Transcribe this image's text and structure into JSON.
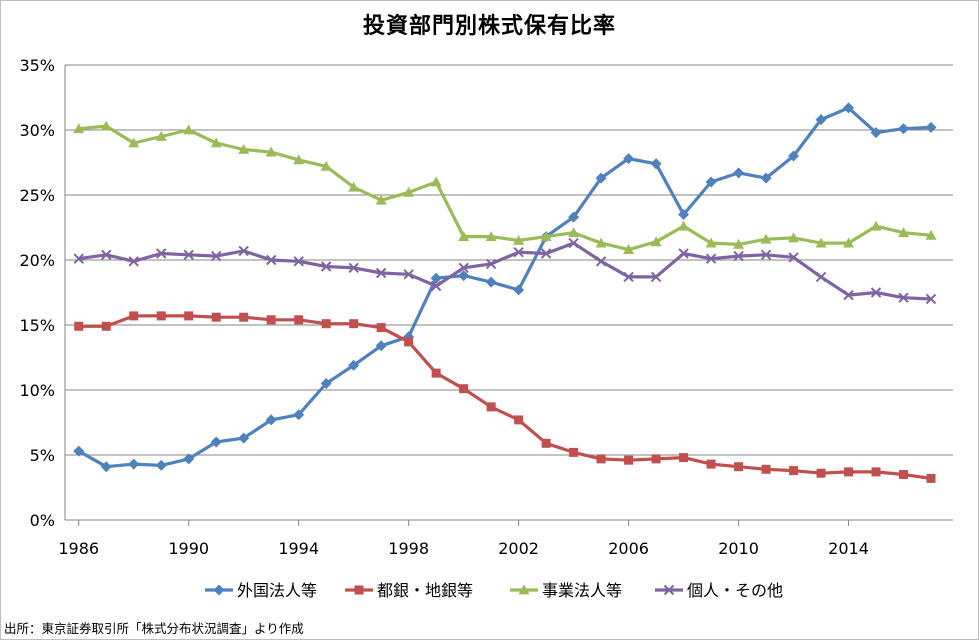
{
  "chart_data": {
    "type": "line",
    "title": "投資部門別株式保有比率",
    "xlabel": "",
    "ylabel": "",
    "xlim": [
      1985.5,
      2017.8
    ],
    "ylim": [
      0,
      35
    ],
    "x_ticks": [
      "1986",
      "1990",
      "1994",
      "1998",
      "2002",
      "2006",
      "2010",
      "2014"
    ],
    "y_ticks": [
      "0%",
      "5%",
      "10%",
      "15%",
      "20%",
      "25%",
      "30%",
      "35%"
    ],
    "grid": "horizontal",
    "legend_position": "bottom",
    "x": [
      1986,
      1987,
      1988,
      1989,
      1990,
      1991,
      1992,
      1993,
      1994,
      1995,
      1996,
      1997,
      1998,
      1999,
      2000,
      2001,
      2002,
      2003,
      2004,
      2005,
      2006,
      2007,
      2008,
      2009,
      2010,
      2011,
      2012,
      2013,
      2014,
      2015,
      2016,
      2017
    ],
    "series": [
      {
        "name": "外国法人等",
        "color": "#4f81bd",
        "marker": "diamond",
        "values": [
          5.3,
          4.1,
          4.3,
          4.2,
          4.7,
          6.0,
          6.3,
          7.7,
          8.1,
          10.5,
          11.9,
          13.4,
          14.1,
          18.6,
          18.8,
          18.3,
          17.7,
          21.8,
          23.3,
          26.3,
          27.8,
          27.4,
          23.5,
          26.0,
          26.7,
          26.3,
          28.0,
          30.8,
          31.7,
          29.8,
          30.1,
          30.2
        ]
      },
      {
        "name": "都銀・地銀等",
        "color": "#c0504d",
        "marker": "square",
        "values": [
          14.9,
          14.9,
          15.7,
          15.7,
          15.7,
          15.6,
          15.6,
          15.4,
          15.4,
          15.1,
          15.1,
          14.8,
          13.7,
          11.3,
          10.1,
          8.7,
          7.7,
          5.9,
          5.2,
          4.7,
          4.6,
          4.7,
          4.8,
          4.3,
          4.1,
          3.9,
          3.8,
          3.6,
          3.7,
          3.7,
          3.5,
          3.2
        ]
      },
      {
        "name": "事業法人等",
        "color": "#9bbb59",
        "marker": "triangle",
        "values": [
          30.1,
          30.3,
          29.0,
          29.5,
          30.0,
          29.0,
          28.5,
          28.3,
          27.7,
          27.2,
          25.6,
          24.6,
          25.2,
          26.0,
          21.8,
          21.8,
          21.5,
          21.8,
          22.1,
          21.3,
          20.8,
          21.4,
          22.6,
          21.3,
          21.2,
          21.6,
          21.7,
          21.3,
          21.3,
          22.6,
          22.1,
          21.9
        ]
      },
      {
        "name": "個人・その他",
        "color": "#8064a2",
        "marker": "x",
        "values": [
          20.1,
          20.4,
          19.9,
          20.5,
          20.4,
          20.3,
          20.7,
          20.0,
          19.9,
          19.5,
          19.4,
          19.0,
          18.9,
          18.0,
          19.4,
          19.7,
          20.6,
          20.5,
          21.3,
          19.9,
          18.7,
          18.7,
          20.5,
          20.1,
          20.3,
          20.4,
          20.2,
          18.7,
          17.3,
          17.5,
          17.1,
          17.0
        ]
      }
    ],
    "source_note": "出所：東京証券取引所「株式分布状況調査」より作成"
  }
}
